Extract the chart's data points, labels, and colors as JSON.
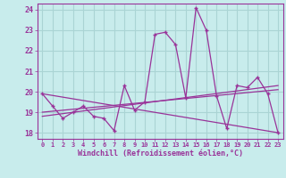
{
  "xlabel": "Windchill (Refroidissement éolien,°C)",
  "background_color": "#c8ecec",
  "grid_color": "#aad4d4",
  "line_color": "#993399",
  "xlim": [
    -0.5,
    23.5
  ],
  "ylim": [
    17.7,
    24.3
  ],
  "yticks": [
    18,
    19,
    20,
    21,
    22,
    23,
    24
  ],
  "xticks": [
    0,
    1,
    2,
    3,
    4,
    5,
    6,
    7,
    8,
    9,
    10,
    11,
    12,
    13,
    14,
    15,
    16,
    17,
    18,
    19,
    20,
    21,
    22,
    23
  ],
  "series1": [
    19.9,
    19.3,
    18.7,
    19.0,
    19.3,
    18.8,
    18.7,
    18.1,
    20.3,
    19.1,
    19.5,
    22.8,
    22.9,
    22.3,
    19.7,
    24.1,
    23.0,
    19.8,
    18.2,
    20.3,
    20.2,
    20.7,
    19.9,
    18.0
  ],
  "series2_x": [
    0,
    23
  ],
  "series2_y": [
    19.9,
    18.0
  ],
  "series3_x": [
    0,
    23
  ],
  "series3_y": [
    19.0,
    20.1
  ],
  "series4_x": [
    0,
    23
  ],
  "series4_y": [
    18.8,
    20.3
  ]
}
